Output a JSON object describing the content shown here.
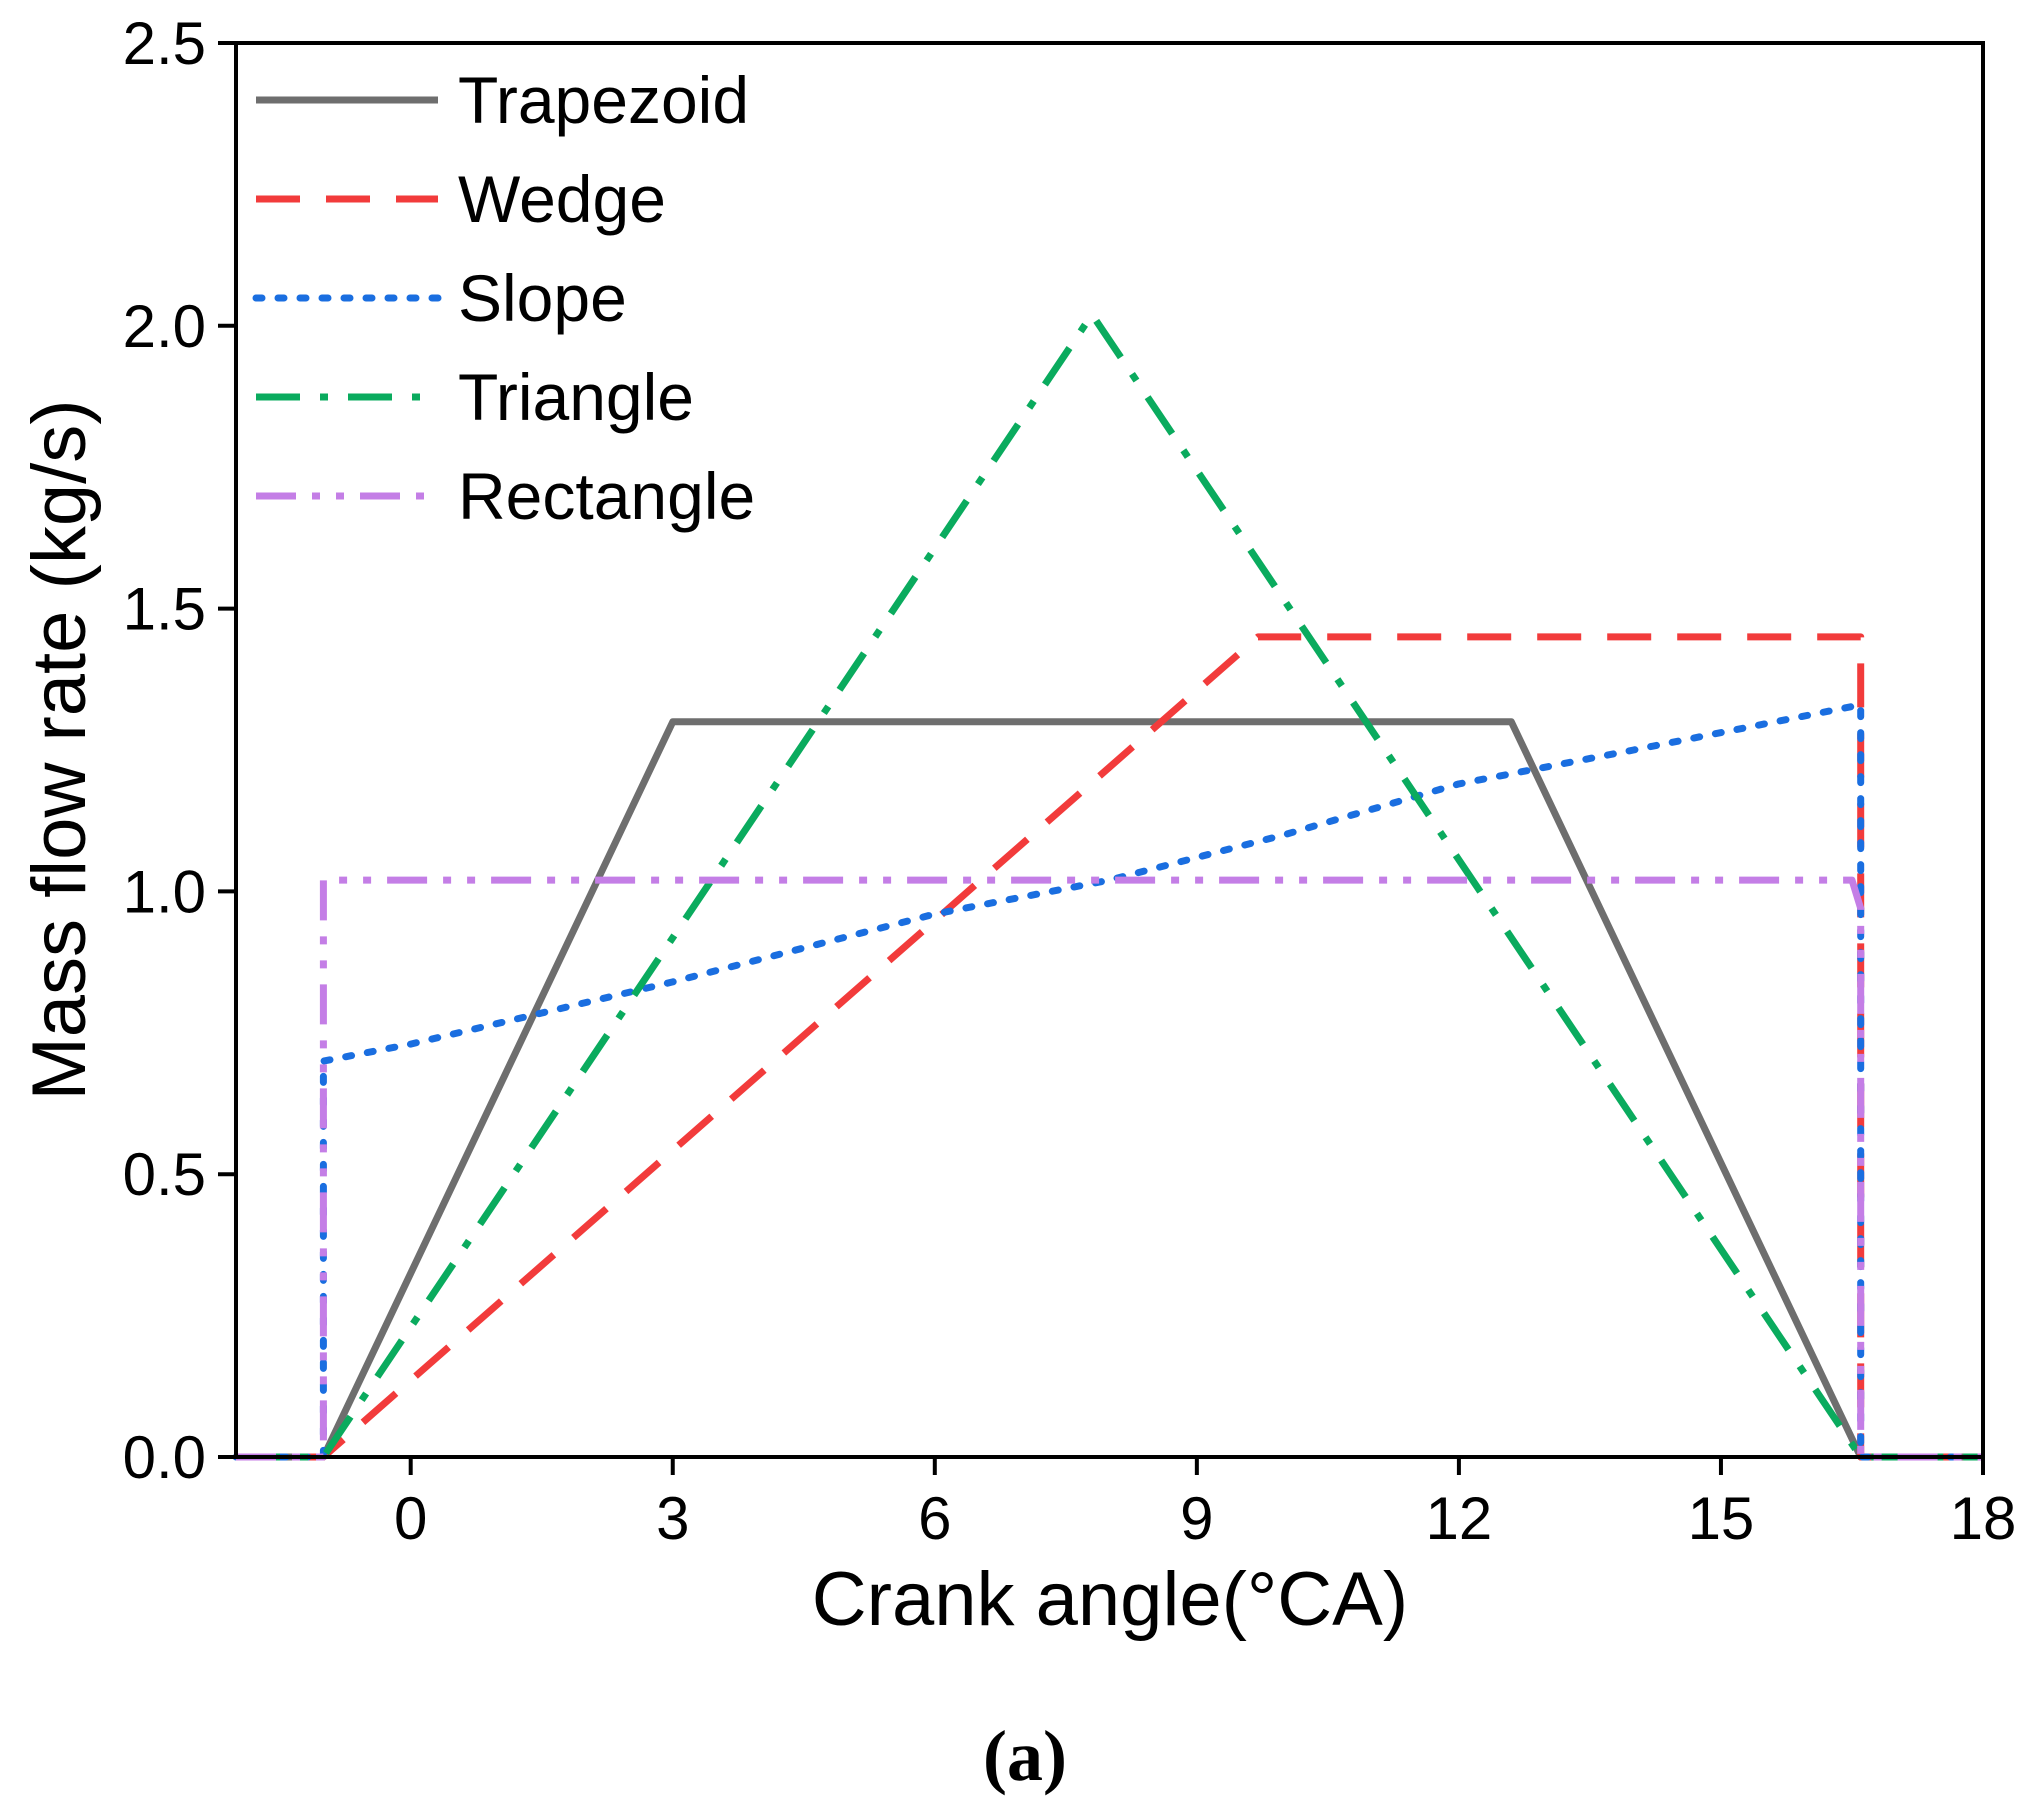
{
  "chart_data": {
    "type": "line",
    "title": "",
    "xlabel": "Crank angle(°CA)",
    "ylabel": "Mass flow rate (kg/s)",
    "caption": "(a)",
    "xlim": [
      -2,
      18
    ],
    "ylim": [
      0,
      2.5
    ],
    "xticks": [
      0,
      3,
      6,
      9,
      12,
      15,
      18
    ],
    "yticks": [
      0.0,
      0.5,
      1.0,
      1.5,
      2.0,
      2.5
    ],
    "ytick_labels": [
      "0.0",
      "0.5",
      "1.0",
      "1.5",
      "2.0",
      "2.5"
    ],
    "legend_position": "top-left",
    "series": [
      {
        "name": "Trapezoid",
        "color": "#6e6e6e",
        "style": "solid",
        "x": [
          -2,
          -1,
          3,
          12.6,
          16.6,
          18
        ],
        "y": [
          0,
          0,
          1.3,
          1.3,
          0,
          0
        ]
      },
      {
        "name": "Wedge",
        "color": "#f23b3b",
        "style": "dashed",
        "x": [
          -2,
          -1,
          9.7,
          16.6,
          16.6,
          18
        ],
        "y": [
          0,
          0,
          1.45,
          1.45,
          0,
          0
        ]
      },
      {
        "name": "Slope",
        "color": "#1a6ee0",
        "style": "dotted",
        "x": [
          -2,
          -1,
          -1,
          0,
          3,
          6,
          8,
          10,
          12,
          14,
          16.6,
          16.6,
          18
        ],
        "y": [
          0,
          0,
          0.7,
          0.73,
          0.84,
          0.96,
          1.02,
          1.1,
          1.19,
          1.25,
          1.33,
          0,
          0
        ]
      },
      {
        "name": "Triangle",
        "color": "#0aab5e",
        "style": "dash-dot",
        "x": [
          -2,
          -1,
          7.8,
          16.6,
          18
        ],
        "y": [
          0,
          0,
          2.02,
          0,
          0
        ]
      },
      {
        "name": "Rectangle",
        "color": "#c47ee6",
        "style": "dash-dot-dot",
        "x": [
          -2,
          -1,
          -1,
          16.5,
          16.6,
          16.6,
          18
        ],
        "y": [
          0,
          0,
          1.02,
          1.02,
          0.97,
          0,
          0
        ]
      }
    ]
  }
}
